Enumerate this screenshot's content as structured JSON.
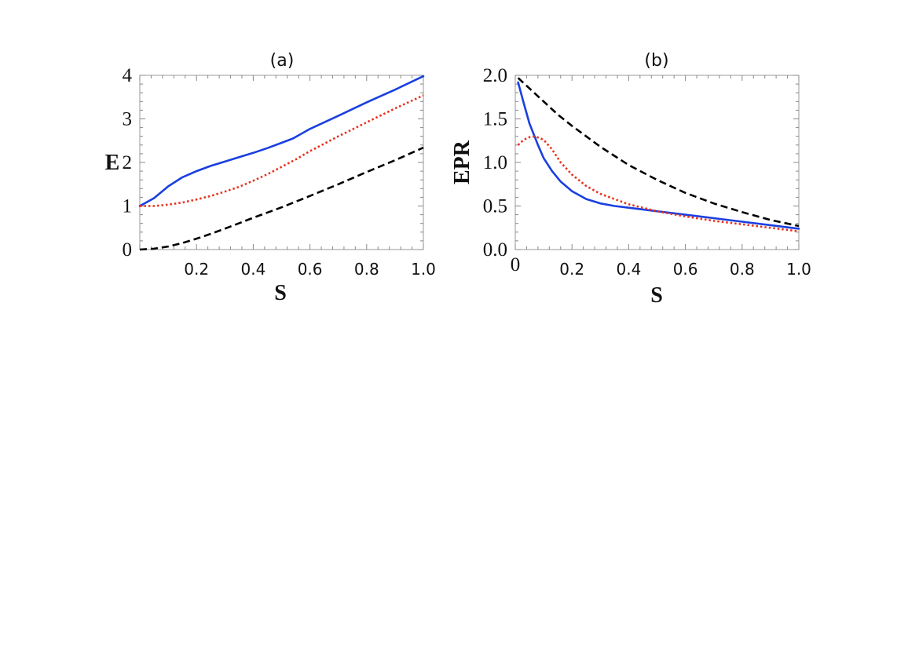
{
  "colors": {
    "blue": "#1a3fe0",
    "red": "#e8301a",
    "black": "#000000"
  },
  "chart_data": [
    {
      "type": "line",
      "title": "(a)",
      "xlabel": "S",
      "ylabel": "E",
      "xlim": [
        0,
        1.0
      ],
      "ylim": [
        0,
        4
      ],
      "xticks": [
        "0.2",
        "0.4",
        "0.6",
        "0.8",
        "1.0"
      ],
      "xtick_values": [
        0.2,
        0.4,
        0.6,
        0.8,
        1.0
      ],
      "yticks": [
        "0",
        "1",
        "2",
        "3",
        "4"
      ],
      "ytick_values": [
        0,
        1,
        2,
        3,
        4
      ],
      "grid": false,
      "series": [
        {
          "style": "solid",
          "color": "#1a3fe0",
          "x": [
            0,
            0.05,
            0.1,
            0.15,
            0.2,
            0.25,
            0.3,
            0.35,
            0.4,
            0.45,
            0.5,
            0.54,
            0.6,
            0.7,
            0.8,
            0.9,
            1.0
          ],
          "y": [
            1.0,
            1.18,
            1.45,
            1.66,
            1.8,
            1.92,
            2.02,
            2.12,
            2.22,
            2.33,
            2.45,
            2.55,
            2.77,
            3.07,
            3.38,
            3.67,
            3.98
          ]
        },
        {
          "style": "dotted",
          "color": "#e8301a",
          "x": [
            0,
            0.05,
            0.1,
            0.15,
            0.2,
            0.25,
            0.3,
            0.35,
            0.4,
            0.45,
            0.5,
            0.55,
            0.6,
            0.7,
            0.8,
            0.9,
            1.0
          ],
          "y": [
            1.0,
            1.0,
            1.03,
            1.08,
            1.15,
            1.23,
            1.33,
            1.44,
            1.58,
            1.73,
            1.9,
            2.07,
            2.26,
            2.6,
            2.92,
            3.24,
            3.54
          ]
        },
        {
          "style": "dashed",
          "color": "#000000",
          "x": [
            0,
            0.05,
            0.1,
            0.15,
            0.2,
            0.25,
            0.3,
            0.4,
            0.5,
            0.6,
            0.7,
            0.8,
            0.9,
            1.0
          ],
          "y": [
            0.0,
            0.02,
            0.07,
            0.15,
            0.25,
            0.36,
            0.48,
            0.73,
            0.97,
            1.23,
            1.5,
            1.78,
            2.05,
            2.34
          ]
        }
      ]
    },
    {
      "type": "line",
      "title": "(b)",
      "xlabel": "S",
      "ylabel": "EPR",
      "xlim": [
        0,
        1.0
      ],
      "ylim": [
        0,
        2.0
      ],
      "xticks": [
        "0",
        "0.2",
        "0.4",
        "0.6",
        "0.8",
        "1.0"
      ],
      "xtick_values": [
        0,
        0.2,
        0.4,
        0.6,
        0.8,
        1.0
      ],
      "yticks": [
        "0.0",
        "0.5",
        "1.0",
        "1.5",
        "2.0"
      ],
      "ytick_values": [
        0,
        0.5,
        1.0,
        1.5,
        2.0
      ],
      "grid": false,
      "series": [
        {
          "style": "solid",
          "color": "#1a3fe0",
          "x": [
            0.01,
            0.03,
            0.05,
            0.08,
            0.1,
            0.13,
            0.16,
            0.2,
            0.25,
            0.3,
            0.35,
            0.4,
            0.5,
            0.6,
            0.7,
            0.8,
            0.9,
            1.0
          ],
          "y": [
            1.92,
            1.68,
            1.45,
            1.2,
            1.05,
            0.9,
            0.78,
            0.67,
            0.58,
            0.53,
            0.5,
            0.48,
            0.44,
            0.4,
            0.36,
            0.32,
            0.28,
            0.24
          ]
        },
        {
          "style": "dotted",
          "color": "#e8301a",
          "x": [
            0.01,
            0.03,
            0.05,
            0.07,
            0.1,
            0.13,
            0.16,
            0.2,
            0.25,
            0.3,
            0.4,
            0.5,
            0.6,
            0.7,
            0.8,
            0.9,
            1.0
          ],
          "y": [
            1.2,
            1.26,
            1.29,
            1.3,
            1.26,
            1.15,
            1.0,
            0.86,
            0.73,
            0.64,
            0.52,
            0.44,
            0.38,
            0.33,
            0.29,
            0.25,
            0.21
          ]
        },
        {
          "style": "dashed",
          "color": "#000000",
          "x": [
            0.01,
            0.05,
            0.1,
            0.15,
            0.2,
            0.25,
            0.3,
            0.4,
            0.5,
            0.6,
            0.7,
            0.8,
            0.9,
            1.0
          ],
          "y": [
            1.97,
            1.85,
            1.7,
            1.55,
            1.42,
            1.3,
            1.18,
            0.97,
            0.8,
            0.65,
            0.53,
            0.43,
            0.34,
            0.27
          ]
        }
      ]
    }
  ]
}
